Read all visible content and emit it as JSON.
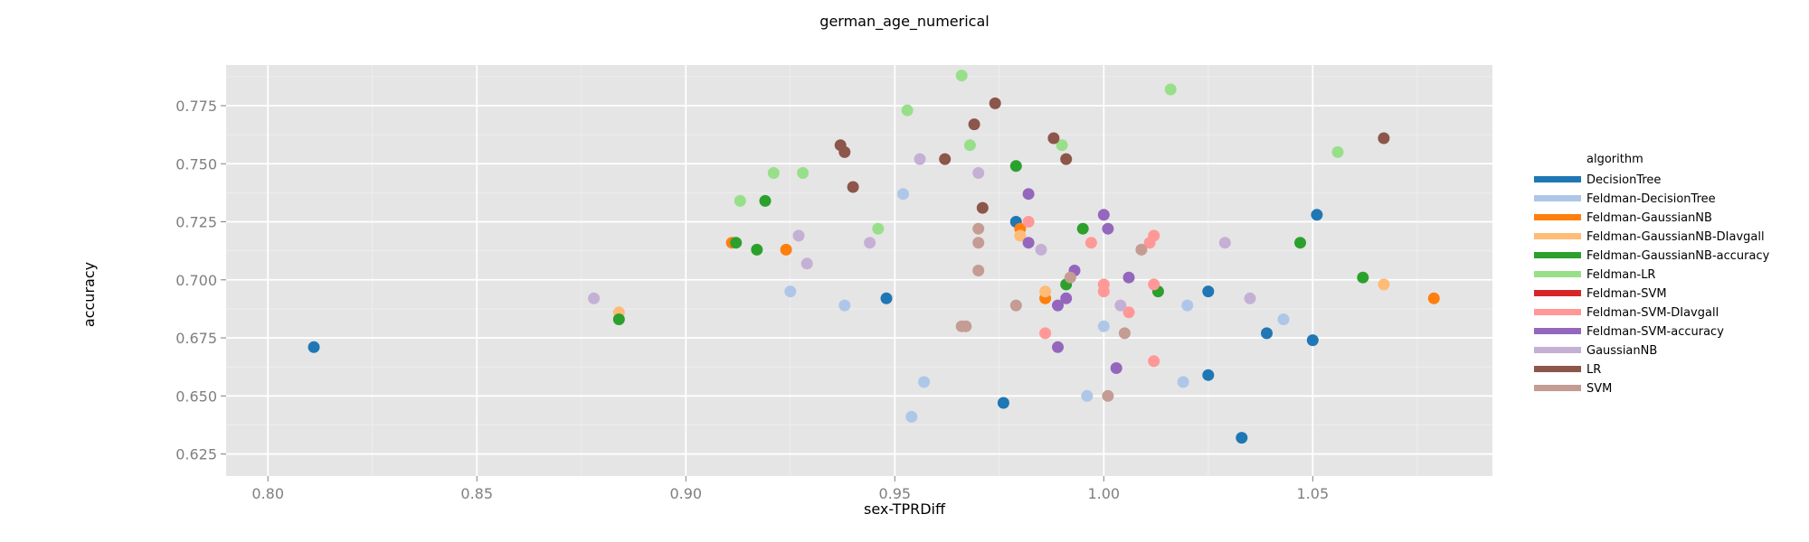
{
  "chart_data": {
    "type": "scatter",
    "title": "german_age_numerical",
    "xlabel": "sex-TPRDiff",
    "ylabel": "accuracy",
    "xlim": [
      0.79,
      1.093
    ],
    "ylim": [
      0.6155,
      0.7925
    ],
    "xticks": [
      0.8,
      0.85,
      0.9,
      0.95,
      1.0,
      1.05
    ],
    "xtick_labels": [
      "0.80",
      "0.85",
      "0.90",
      "0.95",
      "1.00",
      "1.05"
    ],
    "yticks": [
      0.625,
      0.65,
      0.675,
      0.7,
      0.725,
      0.75,
      0.775
    ],
    "ytick_labels": [
      "0.625",
      "0.650",
      "0.675",
      "0.700",
      "0.725",
      "0.750",
      "0.775"
    ],
    "grid": true,
    "legend": {
      "title": "algorithm",
      "placement": "right"
    },
    "series": [
      {
        "name": "DecisionTree",
        "color": "#1f77b4",
        "points": [
          [
            0.811,
            0.671
          ],
          [
            0.948,
            0.692
          ],
          [
            0.976,
            0.647
          ],
          [
            0.979,
            0.725
          ],
          [
            1.025,
            0.695
          ],
          [
            1.025,
            0.659
          ],
          [
            1.033,
            0.632
          ],
          [
            1.039,
            0.677
          ],
          [
            1.05,
            0.674
          ],
          [
            1.051,
            0.728
          ]
        ]
      },
      {
        "name": "Feldman-DecisionTree",
        "color": "#aec7e8",
        "points": [
          [
            0.925,
            0.695
          ],
          [
            0.938,
            0.689
          ],
          [
            0.952,
            0.737
          ],
          [
            0.954,
            0.641
          ],
          [
            0.957,
            0.656
          ],
          [
            0.996,
            0.65
          ],
          [
            1.0,
            0.68
          ],
          [
            1.02,
            0.689
          ],
          [
            1.019,
            0.656
          ],
          [
            1.043,
            0.683
          ]
        ]
      },
      {
        "name": "Feldman-GaussianNB",
        "color": "#ff7f0e",
        "points": [
          [
            0.911,
            0.716
          ],
          [
            0.924,
            0.713
          ],
          [
            0.98,
            0.722
          ],
          [
            0.986,
            0.692
          ],
          [
            1.079,
            0.692
          ]
        ]
      },
      {
        "name": "Feldman-GaussianNB-DIavgall",
        "color": "#ffbb78",
        "points": [
          [
            0.884,
            0.686
          ],
          [
            0.98,
            0.719
          ],
          [
            0.986,
            0.695
          ],
          [
            1.067,
            0.698
          ]
        ]
      },
      {
        "name": "Feldman-GaussianNB-accuracy",
        "color": "#2ca02c",
        "points": [
          [
            0.884,
            0.683
          ],
          [
            0.912,
            0.716
          ],
          [
            0.917,
            0.713
          ],
          [
            0.919,
            0.734
          ],
          [
            0.979,
            0.749
          ],
          [
            0.991,
            0.698
          ],
          [
            0.995,
            0.722
          ],
          [
            1.013,
            0.695
          ],
          [
            1.047,
            0.716
          ],
          [
            1.062,
            0.701
          ]
        ]
      },
      {
        "name": "Feldman-LR",
        "color": "#98df8a",
        "points": [
          [
            0.913,
            0.734
          ],
          [
            0.921,
            0.746
          ],
          [
            0.928,
            0.746
          ],
          [
            0.946,
            0.722
          ],
          [
            0.953,
            0.773
          ],
          [
            0.966,
            0.788
          ],
          [
            0.968,
            0.758
          ],
          [
            0.99,
            0.758
          ],
          [
            1.016,
            0.782
          ],
          [
            1.056,
            0.755
          ]
        ]
      },
      {
        "name": "Feldman-SVM",
        "color": "#d62728",
        "points": []
      },
      {
        "name": "Feldman-SVM-DIavgall",
        "color": "#ff9896",
        "points": [
          [
            0.982,
            0.725
          ],
          [
            0.986,
            0.677
          ],
          [
            0.997,
            0.716
          ],
          [
            1.0,
            0.698
          ],
          [
            1.0,
            0.695
          ],
          [
            1.006,
            0.686
          ],
          [
            1.011,
            0.716
          ],
          [
            1.012,
            0.719
          ],
          [
            1.012,
            0.698
          ],
          [
            1.012,
            0.665
          ]
        ]
      },
      {
        "name": "Feldman-SVM-accuracy",
        "color": "#9467bd",
        "points": [
          [
            0.982,
            0.716
          ],
          [
            0.982,
            0.737
          ],
          [
            0.989,
            0.671
          ],
          [
            0.989,
            0.689
          ],
          [
            0.991,
            0.692
          ],
          [
            0.993,
            0.704
          ],
          [
            1.0,
            0.728
          ],
          [
            1.001,
            0.722
          ],
          [
            1.003,
            0.662
          ],
          [
            1.006,
            0.701
          ]
        ]
      },
      {
        "name": "GaussianNB",
        "color": "#c5b0d5",
        "points": [
          [
            0.878,
            0.692
          ],
          [
            0.927,
            0.719
          ],
          [
            0.929,
            0.707
          ],
          [
            0.944,
            0.716
          ],
          [
            0.956,
            0.752
          ],
          [
            0.97,
            0.746
          ],
          [
            0.985,
            0.713
          ],
          [
            1.004,
            0.689
          ],
          [
            1.029,
            0.716
          ],
          [
            1.035,
            0.692
          ]
        ]
      },
      {
        "name": "LR",
        "color": "#8c564b",
        "points": [
          [
            0.937,
            0.758
          ],
          [
            0.938,
            0.755
          ],
          [
            0.94,
            0.74
          ],
          [
            0.962,
            0.752
          ],
          [
            0.969,
            0.767
          ],
          [
            0.971,
            0.731
          ],
          [
            0.974,
            0.776
          ],
          [
            0.988,
            0.761
          ],
          [
            0.991,
            0.752
          ],
          [
            1.067,
            0.761
          ]
        ]
      },
      {
        "name": "SVM",
        "color": "#c49c94",
        "points": [
          [
            0.966,
            0.68
          ],
          [
            0.967,
            0.68
          ],
          [
            0.97,
            0.722
          ],
          [
            0.97,
            0.716
          ],
          [
            0.97,
            0.704
          ],
          [
            0.979,
            0.689
          ],
          [
            0.992,
            0.701
          ],
          [
            1.001,
            0.65
          ],
          [
            1.005,
            0.677
          ],
          [
            1.009,
            0.713
          ]
        ]
      }
    ]
  }
}
